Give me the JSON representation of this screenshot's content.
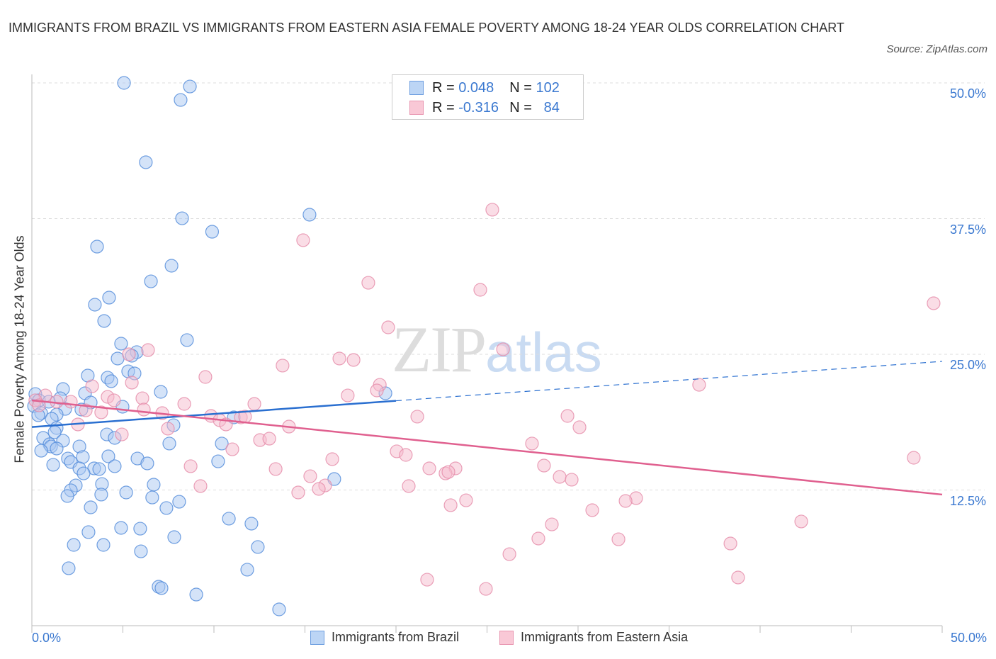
{
  "title": "IMMIGRANTS FROM BRAZIL VS IMMIGRANTS FROM EASTERN ASIA FEMALE POVERTY AMONG 18-24 YEAR OLDS CORRELATION CHART",
  "source": "Source: ZipAtlas.com",
  "watermark": {
    "zip": "ZIP",
    "atlas": "atlas"
  },
  "legend": {
    "rows": [
      {
        "r_label": "R =",
        "r": "0.048",
        "n_label": "N =",
        "n": "102"
      },
      {
        "r_label": "R =",
        "r": "-0.316",
        "n_label": "N =",
        "n": "84"
      }
    ]
  },
  "colors": {
    "brazil_fill": "#a9c8f2",
    "brazil_stroke": "#4d88d9",
    "brazil_line": "#2a6fd0",
    "asia_fill": "#f6bccd",
    "asia_stroke": "#e58aa8",
    "asia_line": "#e0608f"
  },
  "chart_data": {
    "type": "scatter",
    "title": "IMMIGRANTS FROM BRAZIL VS IMMIGRANTS FROM EASTERN ASIA FEMALE POVERTY AMONG 18-24 YEAR OLDS CORRELATION CHART",
    "xlabel": "",
    "ylabel": "Female Poverty Among 18-24 Year Olds",
    "xlim": [
      0,
      50
    ],
    "ylim": [
      0,
      50
    ],
    "x_tick_labels": [
      "0.0%",
      "50.0%"
    ],
    "y_ticks": [
      {
        "value": 50,
        "label": "50.0%"
      },
      {
        "value": 37.5,
        "label": "37.5%"
      },
      {
        "value": 25,
        "label": "25.0%"
      },
      {
        "value": 12.5,
        "label": "12.5%"
      }
    ],
    "grid": true,
    "legend_position": "top-center",
    "series": [
      {
        "name": "Immigrants from Brazil",
        "R": 0.048,
        "N": 102,
        "trend": {
          "x0": 0,
          "y0": 18.3,
          "x1": 50,
          "y1": 24.35,
          "solid_until": 20
        },
        "points": [
          [
            5.06,
            50.0
          ],
          [
            8.68,
            49.67
          ],
          [
            8.17,
            48.43
          ],
          [
            6.26,
            42.69
          ],
          [
            15.25,
            37.86
          ],
          [
            8.25,
            37.53
          ],
          [
            9.9,
            36.29
          ],
          [
            3.58,
            34.92
          ],
          [
            7.67,
            33.16
          ],
          [
            6.54,
            31.72
          ],
          [
            4.24,
            30.22
          ],
          [
            3.46,
            29.57
          ],
          [
            3.97,
            28.07
          ],
          [
            8.52,
            26.31
          ],
          [
            4.9,
            25.98
          ],
          [
            5.76,
            25.2
          ],
          [
            4.71,
            24.61
          ],
          [
            5.49,
            24.87
          ],
          [
            5.29,
            23.43
          ],
          [
            5.64,
            23.24
          ],
          [
            3.07,
            23.04
          ],
          [
            4.16,
            22.85
          ],
          [
            4.36,
            22.52
          ],
          [
            1.71,
            21.8
          ],
          [
            2.92,
            21.41
          ],
          [
            7.08,
            21.54
          ],
          [
            0.19,
            21.34
          ],
          [
            19.42,
            21.41
          ],
          [
            0.39,
            20.76
          ],
          [
            1.56,
            20.95
          ],
          [
            3.23,
            20.56
          ],
          [
            0.12,
            20.23
          ],
          [
            0.93,
            20.63
          ],
          [
            1.83,
            19.97
          ],
          [
            0.51,
            19.58
          ],
          [
            4.98,
            20.17
          ],
          [
            2.72,
            19.91
          ],
          [
            1.36,
            19.45
          ],
          [
            0.35,
            19.39
          ],
          [
            11.09,
            19.19
          ],
          [
            1.09,
            19.06
          ],
          [
            1.36,
            18.21
          ],
          [
            7.78,
            18.47
          ],
          [
            4.12,
            17.62
          ],
          [
            0.62,
            17.3
          ],
          [
            1.25,
            17.82
          ],
          [
            4.55,
            17.3
          ],
          [
            1.71,
            17.04
          ],
          [
            0.97,
            16.71
          ],
          [
            2.61,
            16.51
          ],
          [
            1.05,
            16.51
          ],
          [
            0.51,
            16.12
          ],
          [
            1.36,
            16.32
          ],
          [
            10.43,
            16.78
          ],
          [
            7.55,
            16.78
          ],
          [
            4.2,
            15.6
          ],
          [
            1.98,
            15.4
          ],
          [
            2.8,
            15.54
          ],
          [
            5.8,
            15.4
          ],
          [
            2.14,
            15.08
          ],
          [
            1.17,
            14.82
          ],
          [
            2.61,
            14.49
          ],
          [
            3.42,
            14.49
          ],
          [
            4.55,
            14.69
          ],
          [
            6.34,
            14.95
          ],
          [
            3.7,
            14.43
          ],
          [
            2.84,
            14.03
          ],
          [
            10.23,
            15.14
          ],
          [
            16.61,
            13.51
          ],
          [
            3.85,
            13.05
          ],
          [
            2.41,
            12.92
          ],
          [
            6.69,
            12.99
          ],
          [
            2.14,
            12.47
          ],
          [
            5.18,
            12.27
          ],
          [
            1.95,
            11.95
          ],
          [
            3.81,
            12.08
          ],
          [
            6.61,
            11.81
          ],
          [
            8.09,
            11.42
          ],
          [
            3.23,
            10.9
          ],
          [
            7.39,
            10.84
          ],
          [
            10.82,
            9.86
          ],
          [
            12.06,
            9.4
          ],
          [
            4.9,
            9.01
          ],
          [
            5.95,
            8.94
          ],
          [
            3.11,
            8.62
          ],
          [
            7.82,
            8.16
          ],
          [
            2.3,
            7.44
          ],
          [
            3.93,
            7.44
          ],
          [
            12.41,
            7.25
          ],
          [
            5.99,
            6.85
          ],
          [
            2.02,
            5.29
          ],
          [
            11.83,
            5.16
          ],
          [
            6.96,
            3.59
          ],
          [
            7.12,
            3.46
          ],
          [
            9.03,
            2.87
          ],
          [
            13.58,
            1.5
          ]
        ]
      },
      {
        "name": "Immigrants from Eastern Asia",
        "R": -0.316,
        "N": 84,
        "trend": {
          "x0": 0,
          "y0": 20.76,
          "x1": 50,
          "y1": 12.08,
          "solid_until": 50
        },
        "points": [
          [
            25.29,
            38.32
          ],
          [
            14.9,
            35.51
          ],
          [
            18.48,
            31.59
          ],
          [
            24.63,
            30.94
          ],
          [
            49.53,
            29.7
          ],
          [
            19.57,
            27.48
          ],
          [
            25.88,
            25.46
          ],
          [
            6.38,
            25.39
          ],
          [
            5.33,
            25.0
          ],
          [
            13.77,
            23.96
          ],
          [
            16.89,
            24.61
          ],
          [
            17.67,
            24.48
          ],
          [
            9.53,
            22.91
          ],
          [
            5.49,
            22.39
          ],
          [
            3.31,
            22.06
          ],
          [
            36.65,
            22.19
          ],
          [
            19.11,
            22.19
          ],
          [
            18.95,
            21.67
          ],
          [
            4.16,
            21.08
          ],
          [
            17.35,
            21.21
          ],
          [
            6.07,
            20.95
          ],
          [
            4.51,
            20.76
          ],
          [
            0.74,
            21.21
          ],
          [
            0.19,
            20.76
          ],
          [
            0.39,
            20.3
          ],
          [
            1.36,
            20.63
          ],
          [
            2.14,
            20.63
          ],
          [
            2.96,
            19.84
          ],
          [
            6.15,
            19.91
          ],
          [
            8.37,
            20.43
          ],
          [
            12.22,
            20.43
          ],
          [
            7.16,
            19.58
          ],
          [
            3.81,
            19.65
          ],
          [
            9.84,
            19.32
          ],
          [
            10.31,
            18.93
          ],
          [
            11.48,
            19.19
          ],
          [
            11.71,
            19.26
          ],
          [
            10.66,
            18.54
          ],
          [
            21.17,
            19.26
          ],
          [
            29.42,
            19.32
          ],
          [
            2.53,
            18.54
          ],
          [
            7.47,
            18.15
          ],
          [
            14.12,
            18.34
          ],
          [
            30.08,
            18.28
          ],
          [
            4.94,
            17.62
          ],
          [
            12.53,
            17.1
          ],
          [
            13.04,
            17.23
          ],
          [
            11.01,
            16.25
          ],
          [
            27.47,
            16.78
          ],
          [
            20.04,
            16.06
          ],
          [
            20.54,
            15.73
          ],
          [
            48.44,
            15.47
          ],
          [
            16.5,
            15.34
          ],
          [
            8.72,
            14.69
          ],
          [
            13.39,
            14.43
          ],
          [
            21.83,
            14.49
          ],
          [
            28.13,
            14.75
          ],
          [
            23.27,
            14.49
          ],
          [
            22.72,
            14.03
          ],
          [
            15.29,
            13.77
          ],
          [
            22.88,
            14.16
          ],
          [
            28.99,
            13.71
          ],
          [
            29.65,
            13.45
          ],
          [
            9.26,
            12.86
          ],
          [
            16.11,
            12.92
          ],
          [
            20.7,
            12.86
          ],
          [
            15.76,
            12.6
          ],
          [
            14.63,
            12.27
          ],
          [
            33.19,
            11.75
          ],
          [
            32.61,
            11.49
          ],
          [
            23.85,
            11.55
          ],
          [
            23.0,
            11.1
          ],
          [
            30.78,
            10.64
          ],
          [
            42.26,
            9.6
          ],
          [
            28.56,
            9.33
          ],
          [
            27.82,
            8.03
          ],
          [
            32.22,
            7.96
          ],
          [
            38.37,
            7.57
          ],
          [
            26.23,
            6.59
          ],
          [
            21.71,
            4.24
          ],
          [
            38.79,
            4.44
          ],
          [
            24.94,
            3.39
          ]
        ]
      }
    ]
  }
}
